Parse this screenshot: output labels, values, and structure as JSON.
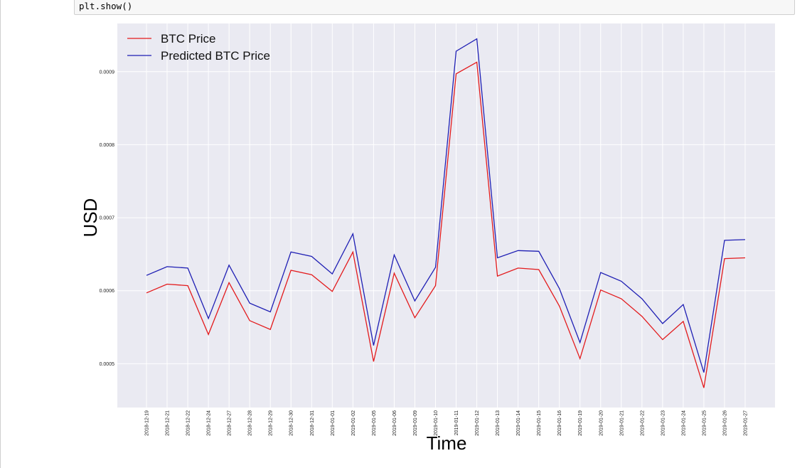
{
  "notebook": {
    "code_line": "plt.show()"
  },
  "chart_data": {
    "type": "line",
    "title": "",
    "xlabel": "Time",
    "ylabel": "USD",
    "ylim": [
      0.00044,
      0.000966
    ],
    "y_ticks": [
      "0.0005",
      "0.0006",
      "0.0007",
      "0.0008",
      "0.0009"
    ],
    "y_tick_values": [
      0.0005,
      0.0006,
      0.0007,
      0.0008,
      0.0009
    ],
    "grid": true,
    "legend_position": "top-left",
    "plot_background": "#eaeaf2",
    "grid_color": "#ffffff",
    "categories": [
      "2018-12-19",
      "2018-12-21",
      "2018-12-22",
      "2018-12-24",
      "2018-12-27",
      "2018-12-28",
      "2018-12-29",
      "2018-12-30",
      "2018-12-31",
      "2019-01-01",
      "2019-01-02",
      "2019-01-05",
      "2019-01-06",
      "2019-01-09",
      "2019-01-10",
      "2019-01-11",
      "2019-01-12",
      "2019-01-13",
      "2019-01-14",
      "2019-01-15",
      "2019-01-16",
      "2019-01-19",
      "2019-01-20",
      "2019-01-21",
      "2019-01-22",
      "2019-01-23",
      "2019-01-24",
      "2019-01-25",
      "2019-01-26",
      "2019-01-27"
    ],
    "series": [
      {
        "name": "BTC Price",
        "color": "#e31a1c",
        "values": [
          0.000597,
          0.000609,
          0.000607,
          0.00054,
          0.000611,
          0.000559,
          0.000547,
          0.000628,
          0.000622,
          0.000599,
          0.000653,
          0.000503,
          0.000624,
          0.000563,
          0.000607,
          0.000897,
          0.000913,
          0.00062,
          0.000631,
          0.000629,
          0.000579,
          0.000507,
          0.000601,
          0.000589,
          0.000565,
          0.000533,
          0.000558,
          0.000467,
          0.000644,
          0.000645
        ]
      },
      {
        "name": "Predicted BTC Price",
        "color": "#1f1fb4",
        "values": [
          0.000621,
          0.000633,
          0.000631,
          0.000562,
          0.000635,
          0.000583,
          0.000571,
          0.000653,
          0.000647,
          0.000623,
          0.000678,
          0.000525,
          0.000649,
          0.000586,
          0.000632,
          0.000928,
          0.000945,
          0.000645,
          0.000655,
          0.000654,
          0.000603,
          0.000529,
          0.000625,
          0.000613,
          0.000589,
          0.000555,
          0.000581,
          0.000488,
          0.000669,
          0.00067
        ]
      }
    ]
  }
}
